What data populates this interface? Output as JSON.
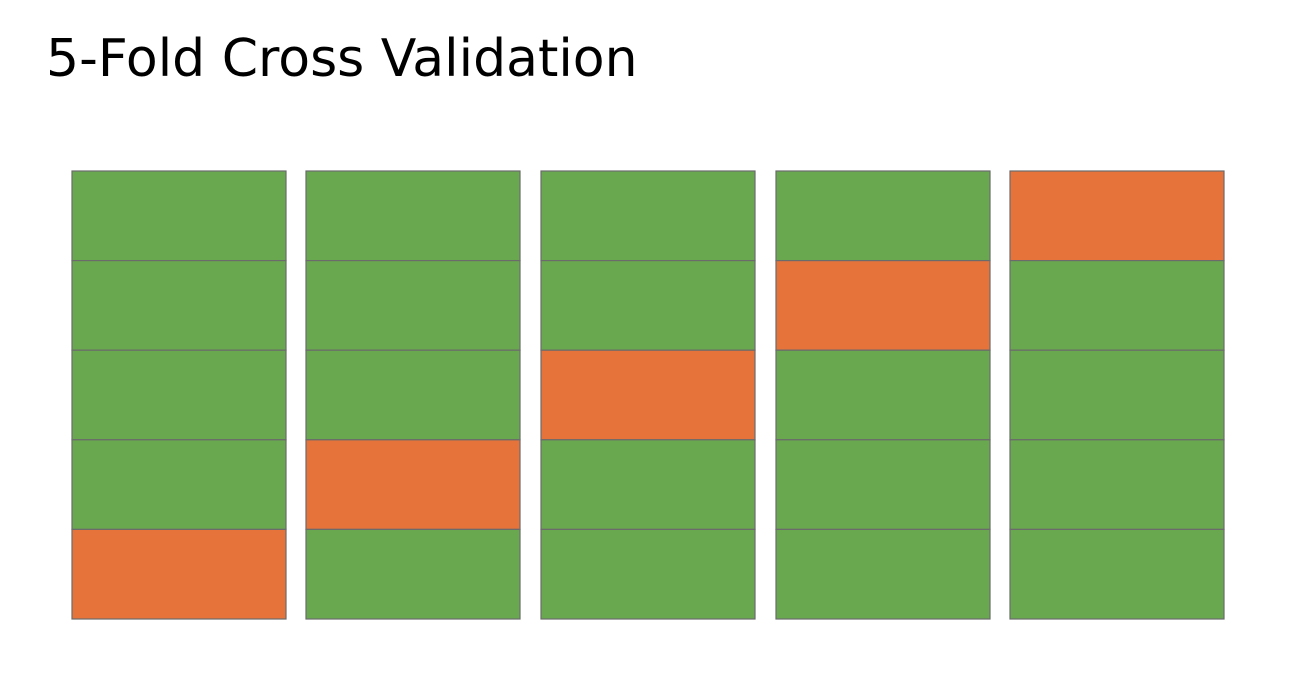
{
  "title": "5-Fold Cross Validation",
  "colors": {
    "training_fold": "#6aa84f",
    "validation_fold": "#e5733a",
    "fold_border": "#6b6b6b"
  },
  "diagram": {
    "folds_per_iteration": 5,
    "iterations": [
      {
        "validation_fold_from_top": 5
      },
      {
        "validation_fold_from_top": 4
      },
      {
        "validation_fold_from_top": 3
      },
      {
        "validation_fold_from_top": 2
      },
      {
        "validation_fold_from_top": 1
      }
    ]
  }
}
